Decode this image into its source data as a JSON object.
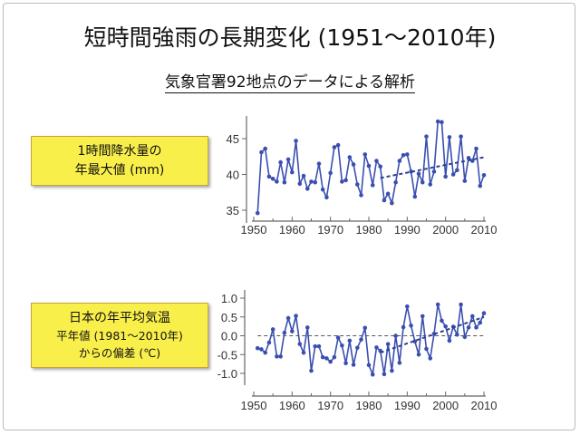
{
  "title": "短時間強雨の長期変化 (1951〜2010年)",
  "subtitle": "気象官署92地点のデータによる解析",
  "labels": {
    "top_line1": "1時間降水量の",
    "top_line2": "年最大値 (mm)",
    "bottom_line1": "日本の年平均気温",
    "bottom_line2": "平年値 (1981〜2010年)",
    "bottom_line3": "からの偏差 (℃)"
  },
  "colors": {
    "series": "#3a4fb0",
    "box": "#f9ef4b"
  },
  "chart_data": [
    {
      "type": "line",
      "title": "1時間降水量の年最大値 (mm)",
      "xlim": [
        1950,
        2010
      ],
      "ylim": [
        33.5,
        47.5
      ],
      "xticks": [
        1950,
        1960,
        1970,
        1980,
        1990,
        2000,
        2010
      ],
      "yticks": [
        35,
        40,
        45
      ],
      "x_start": 1951,
      "values": [
        34.6,
        43.1,
        43.6,
        39.7,
        39.4,
        39.0,
        41.7,
        38.9,
        42.1,
        40.3,
        44.7,
        38.7,
        39.8,
        38.0,
        39.0,
        38.9,
        41.5,
        37.9,
        36.8,
        40.2,
        43.8,
        44.1,
        39.0,
        39.2,
        42.4,
        41.4,
        38.6,
        37.1,
        42.8,
        41.2,
        38.5,
        41.9,
        41.1,
        36.4,
        37.3,
        36.0,
        38.9,
        41.9,
        42.7,
        42.8,
        40.4,
        36.9,
        40.1,
        38.9,
        45.3,
        38.6,
        40.4,
        47.4,
        47.3,
        39.7,
        45.2,
        40.0,
        40.6,
        45.3,
        39.1,
        42.3,
        41.9,
        43.6,
        38.4,
        39.9
      ],
      "trend": {
        "x": [
          1983,
          2010
        ],
        "y": [
          39.5,
          42.4
        ]
      },
      "grid": false
    },
    {
      "type": "line",
      "title": "日本の年平均気温 平年値からの偏差 (℃)",
      "xlim": [
        1950,
        2010
      ],
      "ylim": [
        -1.35,
        1.1
      ],
      "xticks": [
        1950,
        1960,
        1970,
        1980,
        1990,
        2000,
        2010
      ],
      "yticks": [
        1.0,
        0.5,
        0.0,
        -0.5,
        -1.0
      ],
      "ytick_labels": [
        "1.0",
        "0.5",
        "0.0",
        "-0.5",
        "-1.0"
      ],
      "x_start": 1951,
      "values": [
        -0.33,
        -0.36,
        -0.45,
        -0.18,
        0.17,
        -0.55,
        -0.55,
        0.08,
        0.47,
        0.12,
        0.53,
        -0.22,
        -0.45,
        0.22,
        -0.93,
        -0.28,
        -0.28,
        -0.57,
        -0.6,
        -0.69,
        -0.57,
        -0.05,
        -0.26,
        -0.73,
        -0.13,
        -0.77,
        -0.32,
        -0.1,
        0.21,
        -0.78,
        -1.03,
        -0.31,
        -0.4,
        -1.02,
        -0.22,
        -0.93,
        0.0,
        -0.72,
        0.23,
        0.78,
        0.27,
        -0.15,
        -0.5,
        0.52,
        -0.35,
        -0.6,
        0.05,
        0.83,
        0.4,
        0.25,
        -0.13,
        0.24,
        0.03,
        0.83,
        -0.03,
        0.22,
        0.52,
        0.22,
        0.35,
        0.6
      ],
      "trend": {
        "x": [
          1983,
          2010
        ],
        "y": [
          -0.45,
          0.5
        ]
      },
      "zero_line": 0,
      "grid": false
    }
  ]
}
